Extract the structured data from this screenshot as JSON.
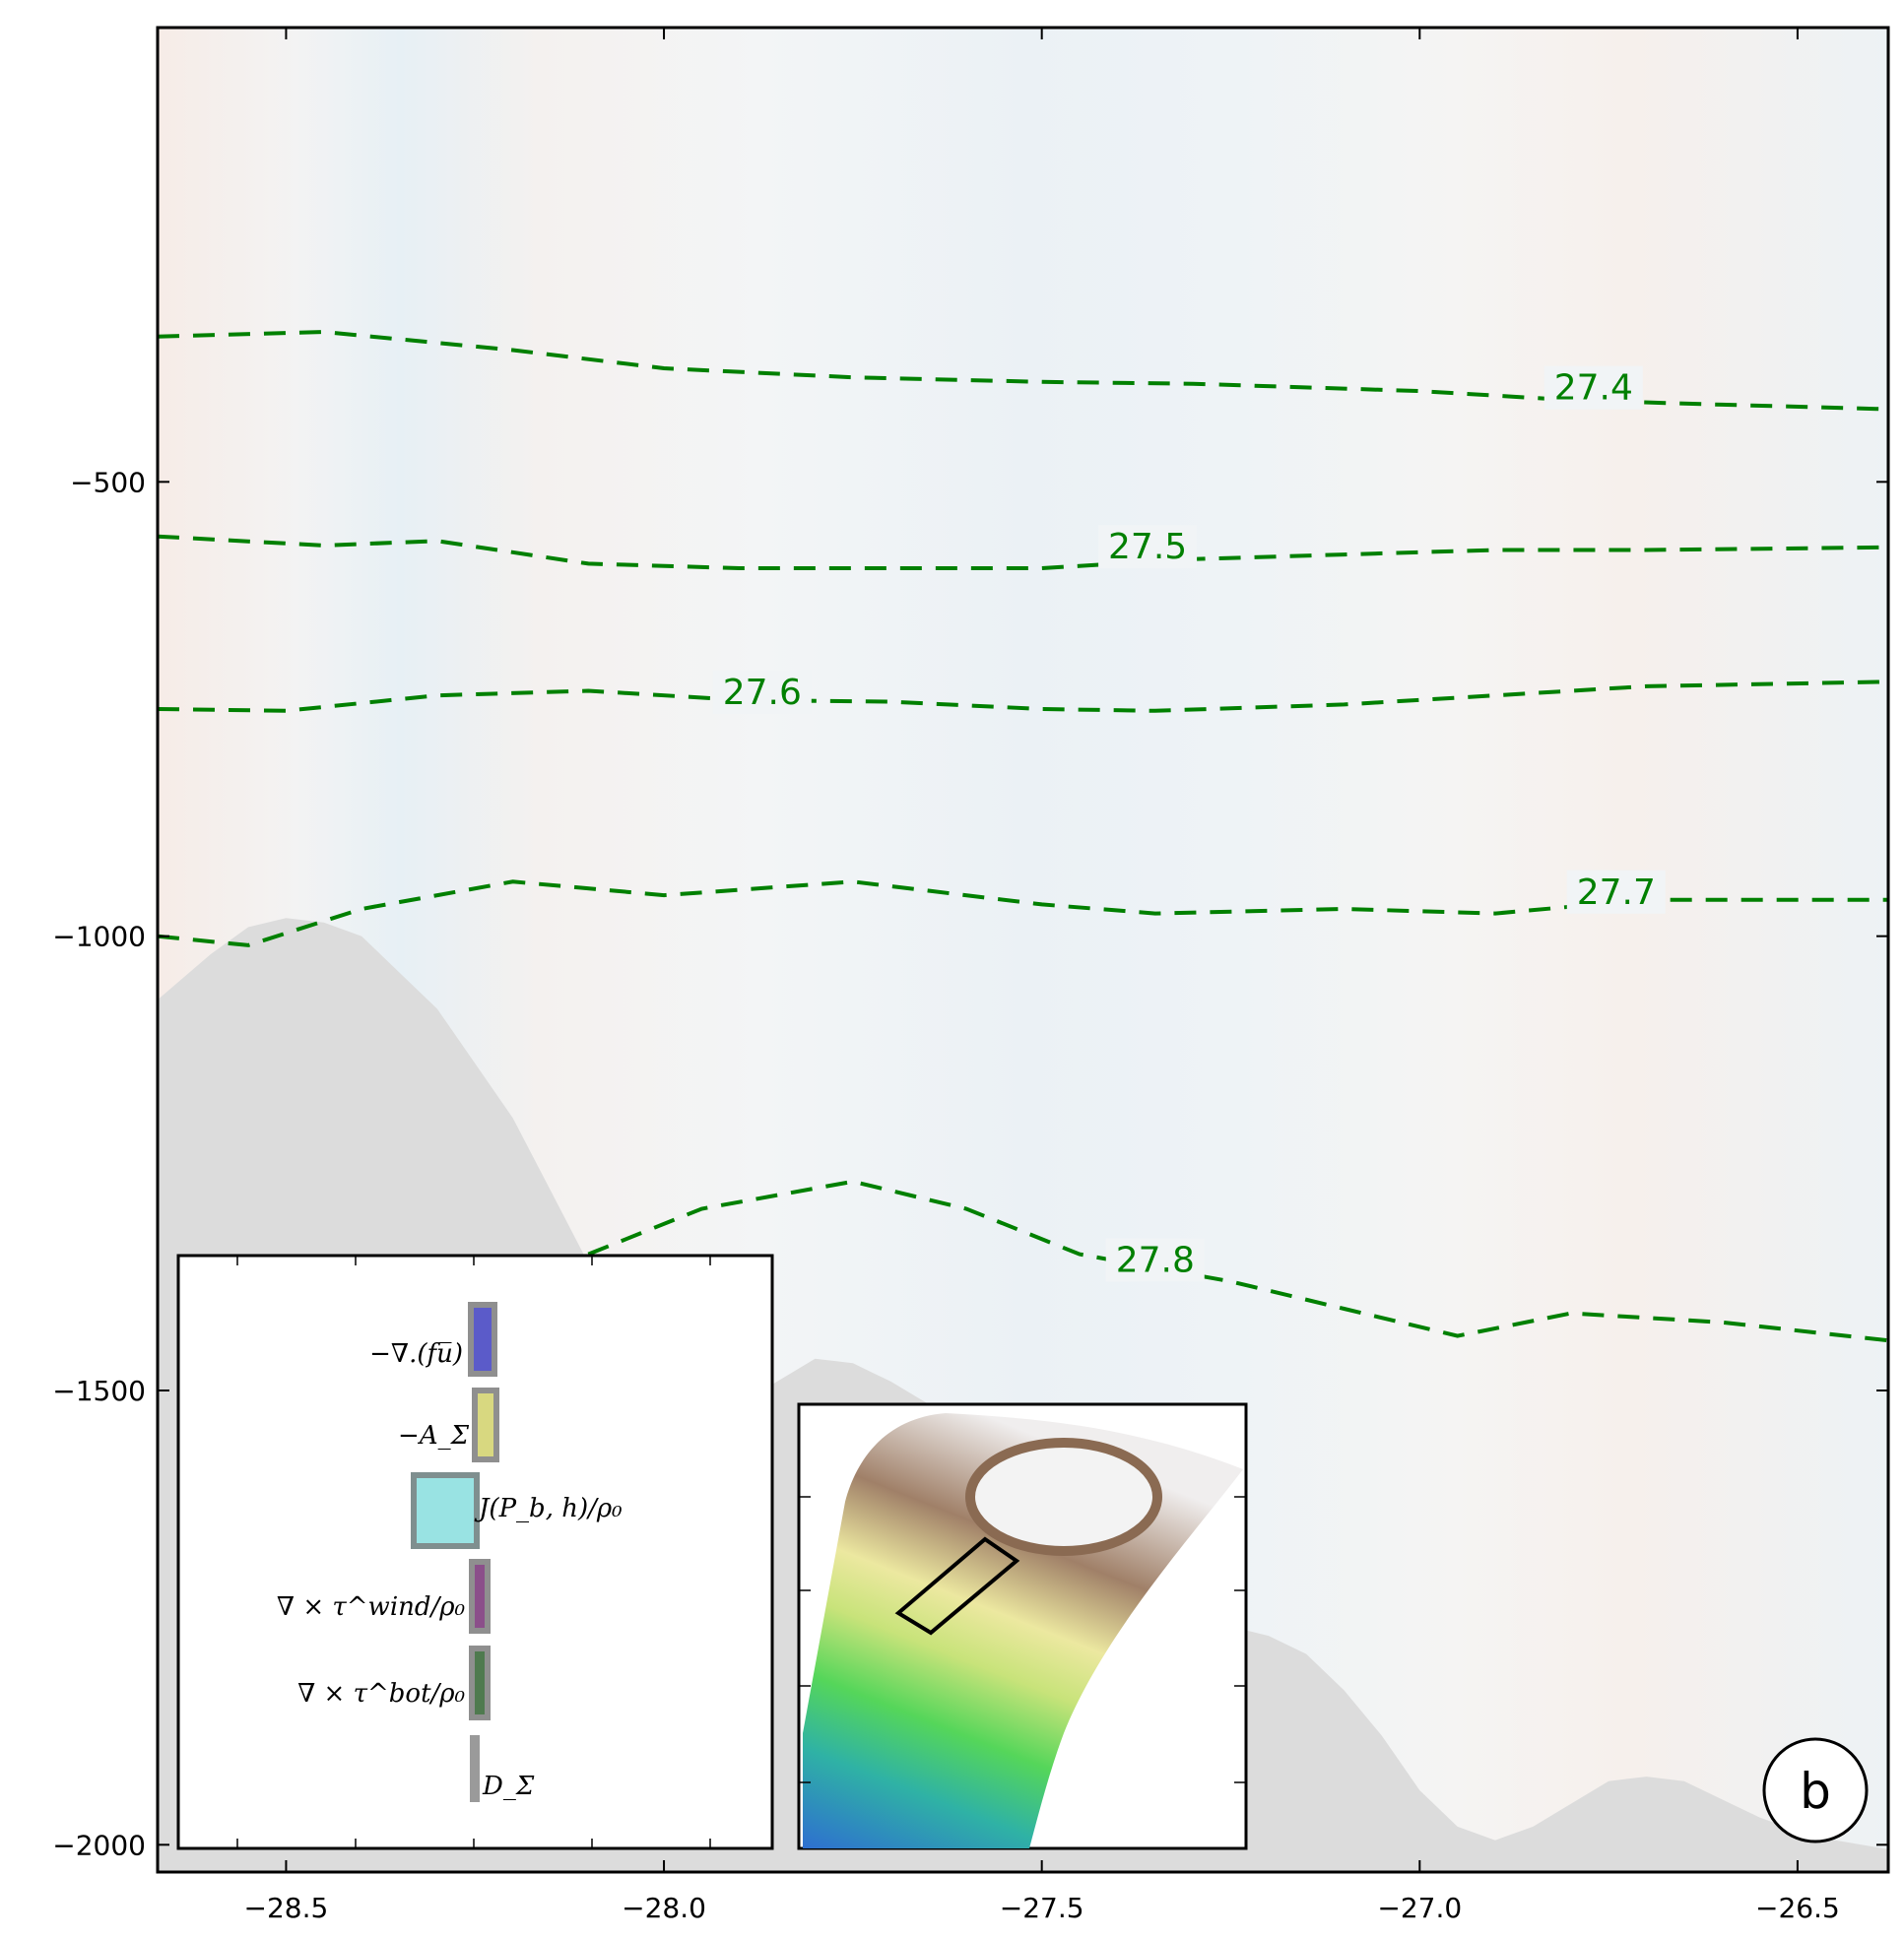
{
  "chart_data": {
    "type": "contour",
    "x_ticks": [
      "-28.5",
      "-28.0",
      "-27.5",
      "-27.0",
      "-26.5"
    ],
    "y_ticks": [
      "-500",
      "-1000",
      "-1500",
      "-2000"
    ],
    "xlim": [
      -28.67,
      -26.38
    ],
    "ylim": [
      -2030,
      0
    ],
    "grid": false,
    "contours": [
      {
        "label": "27.4",
        "x": [
          -28.67,
          -28.45,
          -28.2,
          -28.0,
          -27.75,
          -27.5,
          -27.3,
          -27.0,
          -26.8,
          -26.6,
          -26.38
        ],
        "y": [
          -340,
          -335,
          -355,
          -375,
          -385,
          -390,
          -392,
          -400,
          -410,
          -415,
          -420
        ],
        "label_x": -26.77,
        "label_y": -405
      },
      {
        "label": "27.5",
        "x": [
          -28.67,
          -28.45,
          -28.3,
          -28.1,
          -27.9,
          -27.7,
          -27.5,
          -27.3,
          -27.1,
          -26.9,
          -26.7,
          -26.38
        ],
        "y": [
          -560,
          -570,
          -565,
          -590,
          -595,
          -595,
          -595,
          -585,
          -580,
          -575,
          -575,
          -572
        ],
        "label_x": -27.36,
        "label_y": -580
      },
      {
        "label": "27.6",
        "x": [
          -28.67,
          -28.5,
          -28.3,
          -28.1,
          -27.9,
          -27.7,
          -27.5,
          -27.35,
          -27.1,
          -26.9,
          -26.7,
          -26.38
        ],
        "y": [
          -750,
          -752,
          -735,
          -730,
          -740,
          -742,
          -750,
          -752,
          -745,
          -735,
          -725,
          -720
        ],
        "label_x": -27.87,
        "label_y": -740
      },
      {
        "label": "27.7",
        "x": [
          -28.67,
          -28.55,
          -28.4,
          -28.2,
          -28.0,
          -27.75,
          -27.5,
          -27.35,
          -27.1,
          -26.9,
          -26.7,
          -26.38
        ],
        "y": [
          -1000,
          -1010,
          -970,
          -940,
          -955,
          -940,
          -965,
          -975,
          -970,
          -975,
          -960,
          -960
        ],
        "label_x": -26.74,
        "label_y": -960
      },
      {
        "label": "27.8",
        "x": [
          -28.1,
          -27.95,
          -27.75,
          -27.6,
          -27.45,
          -27.25,
          -27.1,
          -26.95,
          -26.8,
          -26.6,
          -26.38
        ],
        "y": [
          -1350,
          -1300,
          -1270,
          -1300,
          -1350,
          -1380,
          -1410,
          -1440,
          -1415,
          -1425,
          -1445
        ],
        "label_x": -27.35,
        "label_y": -1365
      }
    ],
    "bathymetry": {
      "x": [
        -28.67,
        -28.6,
        -28.55,
        -28.5,
        -28.45,
        -28.4,
        -28.35,
        -28.3,
        -28.25,
        -28.2,
        -28.15,
        -28.1,
        -28.05,
        -28.0,
        -27.95,
        -27.9,
        -27.85,
        -27.8,
        -27.75,
        -27.7,
        -27.65,
        -27.6,
        -27.55,
        -27.5,
        -27.45,
        -27.4,
        -27.35,
        -27.3,
        -27.25,
        -27.2,
        -27.15,
        -27.1,
        -27.05,
        -27.0,
        -26.95,
        -26.9,
        -26.85,
        -26.8,
        -26.75,
        -26.7,
        -26.65,
        -26.6,
        -26.55,
        -26.5,
        -26.45,
        -26.38
      ],
      "depth": [
        -1070,
        -1020,
        -990,
        -980,
        -985,
        -1000,
        -1040,
        -1080,
        -1140,
        -1200,
        -1280,
        -1360,
        -1430,
        -1490,
        -1520,
        -1515,
        -1490,
        -1465,
        -1470,
        -1490,
        -1515,
        -1540,
        -1570,
        -1600,
        -1640,
        -1680,
        -1720,
        -1750,
        -1760,
        -1770,
        -1790,
        -1830,
        -1880,
        -1940,
        -1980,
        -1995,
        -1980,
        -1955,
        -1930,
        -1925,
        -1930,
        -1950,
        -1970,
        -1985,
        -1995,
        -2005
      ]
    },
    "inset_terms": {
      "labels": [
        "−∇.(fu̅)",
        "−A_Σ",
        "J(P_b, h)/ρ₀",
        "∇ × τ^wind/ρ₀",
        "∇ × τ^bot/ρ₀",
        "D_Σ"
      ],
      "colors": [
        "#5b5bc9",
        "#d8d880",
        "#99e3e3",
        "#8b4f8a",
        "#4f7a4f",
        "#9a9a9a"
      ]
    },
    "panel_label": "b"
  }
}
